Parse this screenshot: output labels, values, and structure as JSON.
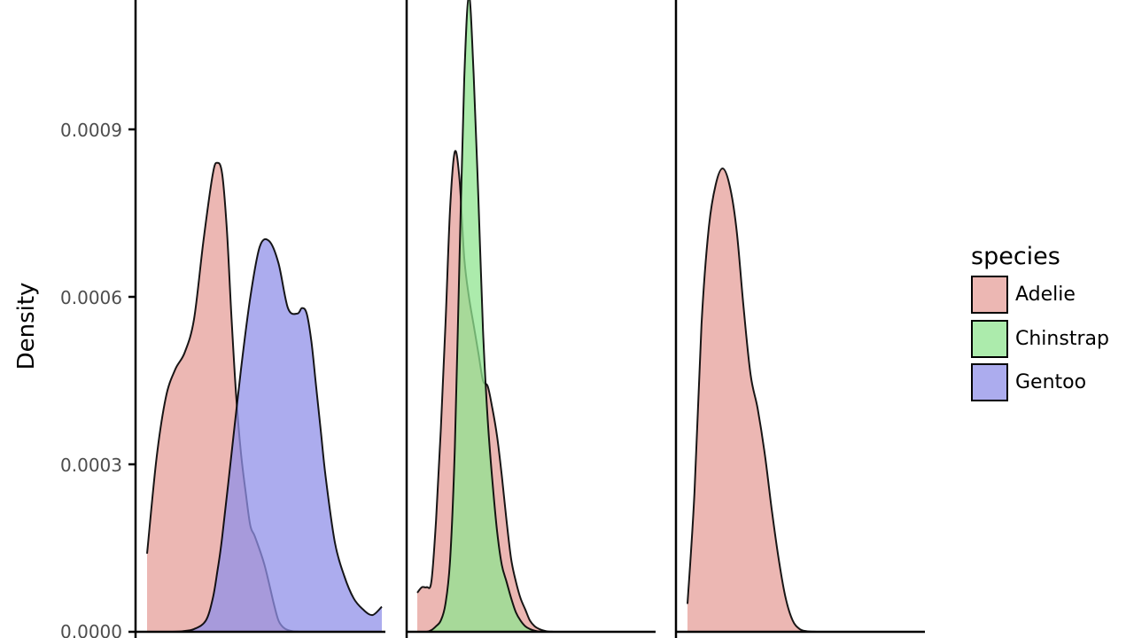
{
  "chart_data": {
    "type": "area",
    "subtype": "density-faceted",
    "ylabel": "Density",
    "y_ticks": [
      0.0,
      0.0003,
      0.0006,
      0.0009
    ],
    "y_tick_labels": [
      "0.0000",
      "0.0003",
      "0.0006",
      "0.0009"
    ],
    "ylim": [
      0,
      0.0011
    ],
    "legend": {
      "title": "species",
      "placement": "right",
      "entries": [
        {
          "name": "Adelie",
          "color": "#e69f9a"
        },
        {
          "name": "Chinstrap",
          "color": "#90e490"
        },
        {
          "name": "Gentoo",
          "color": "#9090e8"
        }
      ]
    },
    "fill_opacity": 0.75,
    "facets": [
      {
        "series": [
          {
            "name": "Adelie",
            "color": "#e69f9a",
            "x": [
              0.0,
              0.04,
              0.08,
              0.12,
              0.16,
              0.2,
              0.24,
              0.28,
              0.3,
              0.32,
              0.34,
              0.36,
              0.38,
              0.4,
              0.42,
              0.44,
              0.46,
              0.5,
              0.54,
              0.56,
              0.58,
              0.6,
              0.62,
              0.64,
              0.66,
              0.7,
              0.75,
              0.8,
              0.85,
              0.9,
              0.95,
              1.0
            ],
            "y": [
              0.00014,
              0.00031,
              0.00042,
              0.00047,
              0.0005,
              0.00056,
              0.0007,
              0.00082,
              0.00084,
              0.00082,
              0.00072,
              0.00056,
              0.00042,
              0.00032,
              0.00025,
              0.00019,
              0.00017,
              0.00012,
              5e-05,
              2e-05,
              8e-06,
              3e-06,
              1e-06,
              3e-07,
              0.0,
              0.0,
              0.0,
              0.0,
              0.0,
              0.0,
              0.0,
              0.0
            ]
          },
          {
            "name": "Gentoo",
            "color": "#9090e8",
            "x": [
              0.0,
              0.05,
              0.1,
              0.15,
              0.2,
              0.25,
              0.28,
              0.3,
              0.32,
              0.36,
              0.4,
              0.44,
              0.48,
              0.52,
              0.56,
              0.6,
              0.64,
              0.66,
              0.68,
              0.7,
              0.72,
              0.74,
              0.76,
              0.8,
              0.84,
              0.88,
              0.92,
              0.96,
              1.0
            ],
            "y": [
              0.0,
              0.0,
              0.0,
              1e-06,
              5e-06,
              2e-05,
              6e-05,
              0.00011,
              0.00017,
              0.00032,
              0.00047,
              0.0006,
              0.00069,
              0.0007,
              0.00066,
              0.00058,
              0.00057,
              0.00058,
              0.00057,
              0.00052,
              0.00044,
              0.00036,
              0.00028,
              0.00016,
              0.0001,
              6e-05,
              4e-05,
              3e-05,
              4.5e-05
            ]
          }
        ]
      },
      {
        "series": [
          {
            "name": "Adelie",
            "color": "#e69f9a",
            "x": [
              0.0,
              0.02,
              0.04,
              0.06,
              0.08,
              0.1,
              0.12,
              0.14,
              0.16,
              0.18,
              0.2,
              0.22,
              0.24,
              0.26,
              0.28,
              0.3,
              0.32,
              0.34,
              0.36,
              0.38,
              0.4,
              0.42,
              0.44,
              0.46,
              0.48,
              0.5,
              0.52,
              0.54,
              0.56,
              0.58,
              0.6,
              0.62,
              0.64,
              0.68,
              0.72,
              0.8,
              0.9,
              1.0
            ],
            "y": [
              7e-05,
              8e-05,
              8e-05,
              9e-05,
              0.0002,
              0.00036,
              0.00055,
              0.00076,
              0.00086,
              0.00081,
              0.00067,
              0.0006,
              0.00055,
              0.0005,
              0.00045,
              0.00044,
              0.0004,
              0.00035,
              0.00028,
              0.0002,
              0.00013,
              9e-05,
              6e-05,
              4e-05,
              2e-05,
              1e-05,
              5e-06,
              2e-06,
              5e-07,
              0.0,
              0.0,
              0.0,
              0.0,
              0.0,
              0.0,
              0.0,
              0.0,
              0.0
            ]
          },
          {
            "name": "Chinstrap",
            "color": "#90e490",
            "x": [
              0.0,
              0.02,
              0.04,
              0.06,
              0.08,
              0.1,
              0.12,
              0.14,
              0.16,
              0.18,
              0.2,
              0.22,
              0.24,
              0.26,
              0.28,
              0.3,
              0.32,
              0.34,
              0.36,
              0.38,
              0.4,
              0.42,
              0.44,
              0.46,
              0.48,
              0.5,
              0.52,
              0.54,
              0.56,
              0.58,
              0.6,
              0.62,
              0.64,
              0.68,
              0.72,
              0.8,
              0.9,
              1.0
            ],
            "y": [
              0.0,
              0.0,
              0.0,
              3e-06,
              1e-05,
              2e-05,
              5e-05,
              0.00013,
              0.00033,
              0.00067,
              0.00099,
              0.00114,
              0.001,
              0.00078,
              0.00054,
              0.00038,
              0.00027,
              0.00018,
              0.00012,
              9e-05,
              6e-05,
              3.5e-05,
              2e-05,
              1e-05,
              5e-06,
              2e-06,
              5e-07,
              0.0,
              0.0,
              0.0,
              0.0,
              0.0,
              0.0,
              0.0,
              0.0,
              0.0,
              0.0,
              0.0
            ]
          }
        ]
      },
      {
        "series": [
          {
            "name": "Adelie",
            "color": "#e69f9a",
            "x": [
              0.0,
              0.03,
              0.06,
              0.09,
              0.12,
              0.15,
              0.18,
              0.21,
              0.24,
              0.27,
              0.3,
              0.33,
              0.36,
              0.39,
              0.42,
              0.45,
              0.48,
              0.51,
              0.54,
              0.57,
              0.6,
              0.65,
              0.7,
              0.8,
              0.9,
              1.0
            ],
            "y": [
              5e-05,
              0.00025,
              0.00055,
              0.00072,
              0.0008,
              0.00083,
              0.0008,
              0.00072,
              0.00058,
              0.00046,
              0.0004,
              0.00032,
              0.00022,
              0.00013,
              6e-05,
              2e-05,
              5e-06,
              1e-06,
              2e-07,
              0.0,
              0.0,
              0.0,
              0.0,
              0.0,
              0.0,
              0.0
            ]
          }
        ]
      }
    ]
  }
}
